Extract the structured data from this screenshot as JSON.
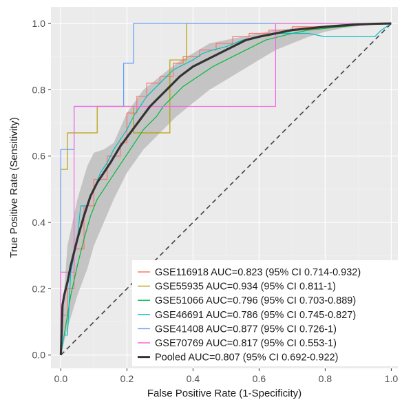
{
  "chart_data": {
    "type": "line",
    "xlabel": "False Positive Rate (1-Specificity)",
    "ylabel": "True Positive Rate (Sensitivity)",
    "xlim": [
      -0.03,
      1.02
    ],
    "ylim": [
      -0.04,
      1.05
    ],
    "x_ticks": [
      0.0,
      0.2,
      0.4,
      0.6,
      0.8,
      1.0
    ],
    "x_tick_labels": [
      "0.0",
      "0.2",
      "0.4",
      "0.6",
      "0.8",
      "1.0"
    ],
    "y_ticks": [
      0.0,
      0.2,
      0.4,
      0.6,
      0.8,
      1.0
    ],
    "y_tick_labels": [
      "0.0",
      "0.2",
      "0.4",
      "0.6",
      "0.8",
      "1.0"
    ],
    "grid": true,
    "legend_position": "bottom-right",
    "reference_line": {
      "x": [
        0,
        1
      ],
      "y": [
        0,
        1
      ],
      "style": "dashed",
      "color": "#404040"
    },
    "confidence_band": {
      "color": "#bdbdbd",
      "x": [
        0,
        0.02,
        0.05,
        0.08,
        0.1,
        0.13,
        0.16,
        0.2,
        0.25,
        0.3,
        0.35,
        0.4,
        0.45,
        0.5,
        0.55,
        0.6,
        0.65,
        0.7,
        0.75,
        0.8,
        0.85,
        0.9,
        0.95,
        1.0
      ],
      "upper": [
        0.06,
        0.33,
        0.47,
        0.57,
        0.61,
        0.62,
        0.64,
        0.73,
        0.8,
        0.84,
        0.88,
        0.91,
        0.94,
        0.95,
        0.96,
        0.97,
        0.98,
        0.985,
        0.99,
        0.993,
        0.996,
        0.998,
        0.999,
        1.0
      ],
      "lower": [
        0.0,
        0.08,
        0.18,
        0.26,
        0.33,
        0.4,
        0.47,
        0.55,
        0.62,
        0.67,
        0.72,
        0.76,
        0.8,
        0.83,
        0.86,
        0.89,
        0.92,
        0.94,
        0.96,
        0.975,
        0.985,
        0.992,
        0.997,
        1.0
      ]
    },
    "series": [
      {
        "name": "GSE116918 AUC=0.823 (95% CI 0.714-0.932)",
        "color": "#f8766d",
        "x": [
          0,
          0.0,
          0.02,
          0.02,
          0.04,
          0.04,
          0.07,
          0.07,
          0.1,
          0.1,
          0.14,
          0.14,
          0.18,
          0.18,
          0.2,
          0.2,
          0.23,
          0.23,
          0.26,
          0.26,
          0.3,
          0.3,
          0.34,
          0.34,
          0.37,
          0.37,
          0.42,
          0.42,
          0.47,
          0.47,
          0.52,
          0.52,
          0.57,
          0.57,
          0.63,
          0.63,
          0.7,
          0.7,
          0.76,
          1.0
        ],
        "y": [
          0,
          0.12,
          0.12,
          0.2,
          0.2,
          0.32,
          0.32,
          0.45,
          0.45,
          0.53,
          0.53,
          0.6,
          0.6,
          0.64,
          0.64,
          0.73,
          0.73,
          0.78,
          0.78,
          0.82,
          0.82,
          0.84,
          0.84,
          0.88,
          0.88,
          0.9,
          0.9,
          0.92,
          0.92,
          0.94,
          0.94,
          0.96,
          0.96,
          0.97,
          0.97,
          0.98,
          0.98,
          0.99,
          0.99,
          1.0
        ]
      },
      {
        "name": "GSE55935 AUC=0.934 (95% CI 0.811-1)",
        "color": "#b79f00",
        "x": [
          0,
          0.0,
          0.0,
          0.0,
          0.02,
          0.02,
          0.11,
          0.11,
          0.22,
          0.22,
          0.33,
          0.33,
          0.38,
          0.38,
          1.0
        ],
        "y": [
          0,
          0.25,
          0.25,
          0.56,
          0.56,
          0.67,
          0.67,
          0.75,
          0.75,
          0.67,
          0.67,
          0.89,
          0.89,
          1.0,
          1.0
        ]
      },
      {
        "name": "GSE51066 AUC=0.796 (95% CI 0.703-0.889)",
        "color": "#00ba38",
        "x": [
          0,
          0.01,
          0.03,
          0.05,
          0.07,
          0.09,
          0.11,
          0.13,
          0.15,
          0.17,
          0.19,
          0.21,
          0.23,
          0.25,
          0.27,
          0.29,
          0.31,
          0.33,
          0.35,
          0.37,
          0.4,
          0.43,
          0.46,
          0.5,
          0.54,
          0.58,
          0.62,
          0.66,
          0.7,
          0.75,
          0.8,
          0.85,
          0.9,
          0.95,
          1.0
        ],
        "y": [
          0,
          0.06,
          0.18,
          0.27,
          0.35,
          0.42,
          0.47,
          0.5,
          0.53,
          0.56,
          0.59,
          0.62,
          0.65,
          0.68,
          0.7,
          0.72,
          0.75,
          0.77,
          0.79,
          0.81,
          0.83,
          0.85,
          0.87,
          0.89,
          0.91,
          0.93,
          0.95,
          0.96,
          0.97,
          0.98,
          0.985,
          0.99,
          0.995,
          1.0,
          1.0
        ]
      },
      {
        "name": "GSE46691 AUC=0.786 (95% CI 0.745-0.827)",
        "color": "#00bfc4",
        "x": [
          0,
          0.01,
          0.02,
          0.03,
          0.05,
          0.06,
          0.08,
          0.1,
          0.12,
          0.14,
          0.16,
          0.18,
          0.2,
          0.22,
          0.24,
          0.26,
          0.28,
          0.3,
          0.32,
          0.34,
          0.36,
          0.38,
          0.4,
          0.43,
          0.46,
          0.5,
          0.55,
          0.6,
          0.65,
          0.7,
          0.75,
          0.8,
          0.85,
          0.9,
          0.95,
          0.97,
          1.0
        ],
        "y": [
          0,
          0.06,
          0.06,
          0.25,
          0.35,
          0.45,
          0.45,
          0.5,
          0.55,
          0.58,
          0.62,
          0.65,
          0.68,
          0.72,
          0.75,
          0.78,
          0.8,
          0.82,
          0.84,
          0.86,
          0.87,
          0.88,
          0.89,
          0.91,
          0.92,
          0.93,
          0.95,
          0.96,
          0.97,
          0.97,
          0.97,
          0.96,
          0.96,
          0.96,
          0.96,
          0.98,
          1.0
        ]
      },
      {
        "name": "GSE41408 AUC=0.877 (95% CI 0.726-1)",
        "color": "#619cff",
        "x": [
          0,
          0.0,
          0.0,
          0.0,
          0.04,
          0.04,
          0.11,
          0.11,
          0.19,
          0.19,
          0.22,
          0.22,
          1.0
        ],
        "y": [
          0,
          0.5,
          0.5,
          0.62,
          0.62,
          0.75,
          0.75,
          0.75,
          0.75,
          0.88,
          0.88,
          1.0,
          1.0
        ]
      },
      {
        "name": "GSE70769 AUC=0.817 (95% CI 0.553-1)",
        "color": "#f564e3",
        "x": [
          0,
          0.0,
          0.0,
          0.0,
          0.04,
          0.04,
          0.2,
          0.2,
          0.65,
          0.65,
          1.0
        ],
        "y": [
          0,
          0.12,
          0.12,
          0.25,
          0.25,
          0.75,
          0.75,
          0.75,
          0.75,
          1.0,
          1.0
        ]
      },
      {
        "name": "Pooled AUC=0.807 (95% CI 0.692-0.922)",
        "color": "#333333",
        "x": [
          0,
          0.005,
          0.01,
          0.02,
          0.03,
          0.04,
          0.05,
          0.07,
          0.09,
          0.11,
          0.13,
          0.15,
          0.18,
          0.21,
          0.24,
          0.27,
          0.3,
          0.33,
          0.36,
          0.4,
          0.44,
          0.48,
          0.52,
          0.56,
          0.6,
          0.65,
          0.7,
          0.75,
          0.8,
          0.85,
          0.9,
          0.95,
          1.0
        ],
        "y": [
          0,
          0.15,
          0.18,
          0.22,
          0.27,
          0.31,
          0.35,
          0.42,
          0.48,
          0.52,
          0.55,
          0.58,
          0.63,
          0.67,
          0.71,
          0.75,
          0.78,
          0.81,
          0.84,
          0.87,
          0.89,
          0.91,
          0.93,
          0.95,
          0.96,
          0.97,
          0.98,
          0.985,
          0.99,
          0.994,
          0.997,
          0.999,
          1.0
        ]
      }
    ]
  }
}
